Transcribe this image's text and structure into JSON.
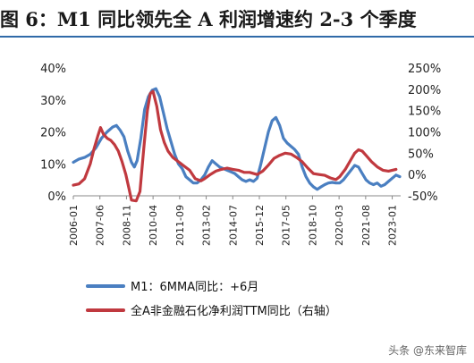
{
  "header": {
    "title": "图 6：M1 同比领先全 A 利润增速约 2-3 个季度"
  },
  "watermark": "头条 @东来智库",
  "chart_data": {
    "type": "line",
    "title": "",
    "xlabel": "",
    "ylabel": "",
    "x_tick_labels": [
      "2006-01",
      "2007-06",
      "2008-11",
      "2010-04",
      "2011-09",
      "2013-02",
      "2014-07",
      "2015-12",
      "2017-05",
      "2018-10",
      "2020-03",
      "2021-08",
      "2023-01"
    ],
    "x_range": [
      2006.0,
      2023.45
    ],
    "y_left": {
      "ticks": [
        "0%",
        "10%",
        "20%",
        "30%",
        "40%"
      ],
      "range": [
        0,
        40
      ]
    },
    "y_right": {
      "ticks": [
        "-50%",
        "0%",
        "50%",
        "100%",
        "150%",
        "200%",
        "250%"
      ],
      "range": [
        -50,
        250
      ]
    },
    "grid": false,
    "legend_position": "bottom",
    "series": [
      {
        "name": "M1：6MMA同比：+6月",
        "axis": "left",
        "color": "#4a7fc1",
        "points": [
          [
            2006.0,
            10.5
          ],
          [
            2006.3,
            11.5
          ],
          [
            2006.6,
            12
          ],
          [
            2006.9,
            13
          ],
          [
            2007.2,
            15
          ],
          [
            2007.5,
            18
          ],
          [
            2007.8,
            20
          ],
          [
            2008.1,
            21.5
          ],
          [
            2008.3,
            22
          ],
          [
            2008.5,
            20.5
          ],
          [
            2008.7,
            18.5
          ],
          [
            2008.9,
            14
          ],
          [
            2009.1,
            10.5
          ],
          [
            2009.25,
            9
          ],
          [
            2009.4,
            11
          ],
          [
            2009.6,
            18
          ],
          [
            2009.8,
            27
          ],
          [
            2010.0,
            31
          ],
          [
            2010.2,
            33
          ],
          [
            2010.4,
            33.5
          ],
          [
            2010.6,
            31
          ],
          [
            2010.8,
            26
          ],
          [
            2011.0,
            21
          ],
          [
            2011.2,
            17
          ],
          [
            2011.4,
            13
          ],
          [
            2011.6,
            10
          ],
          [
            2011.8,
            8.5
          ],
          [
            2012.0,
            6
          ],
          [
            2012.2,
            5
          ],
          [
            2012.4,
            4
          ],
          [
            2012.6,
            4
          ],
          [
            2012.8,
            5
          ],
          [
            2013.0,
            6.5
          ],
          [
            2013.2,
            9
          ],
          [
            2013.4,
            11
          ],
          [
            2013.6,
            10
          ],
          [
            2013.8,
            9
          ],
          [
            2014.0,
            8.5
          ],
          [
            2014.2,
            8
          ],
          [
            2014.4,
            7.5
          ],
          [
            2014.6,
            7
          ],
          [
            2014.8,
            6
          ],
          [
            2015.0,
            5
          ],
          [
            2015.2,
            4.5
          ],
          [
            2015.4,
            5
          ],
          [
            2015.6,
            4.5
          ],
          [
            2015.8,
            5.5
          ],
          [
            2016.0,
            10
          ],
          [
            2016.2,
            15
          ],
          [
            2016.4,
            20
          ],
          [
            2016.6,
            23.5
          ],
          [
            2016.8,
            24.5
          ],
          [
            2017.0,
            22
          ],
          [
            2017.2,
            18
          ],
          [
            2017.4,
            16.5
          ],
          [
            2017.6,
            15.5
          ],
          [
            2017.8,
            14.5
          ],
          [
            2018.0,
            13
          ],
          [
            2018.2,
            9
          ],
          [
            2018.4,
            6
          ],
          [
            2018.6,
            4
          ],
          [
            2018.8,
            2.8
          ],
          [
            2019.0,
            2
          ],
          [
            2019.2,
            2.8
          ],
          [
            2019.4,
            3.5
          ],
          [
            2019.6,
            4
          ],
          [
            2019.8,
            4.2
          ],
          [
            2020.0,
            4
          ],
          [
            2020.2,
            4
          ],
          [
            2020.4,
            5
          ],
          [
            2020.6,
            6.5
          ],
          [
            2020.8,
            8
          ],
          [
            2021.0,
            9.5
          ],
          [
            2021.2,
            9
          ],
          [
            2021.4,
            7
          ],
          [
            2021.6,
            5
          ],
          [
            2021.8,
            4
          ],
          [
            2022.0,
            3.5
          ],
          [
            2022.2,
            4
          ],
          [
            2022.4,
            3
          ],
          [
            2022.6,
            3.5
          ],
          [
            2022.8,
            4.5
          ],
          [
            2023.0,
            5.5
          ],
          [
            2023.2,
            6.5
          ],
          [
            2023.4,
            6
          ]
        ]
      },
      {
        "name": "全A非金融石化净利润TTM同比（右轴）",
        "axis": "right",
        "color": "#c0393f",
        "points": [
          [
            2006.0,
            -25
          ],
          [
            2006.3,
            -22
          ],
          [
            2006.6,
            -10
          ],
          [
            2006.9,
            25
          ],
          [
            2007.1,
            60
          ],
          [
            2007.3,
            90
          ],
          [
            2007.45,
            110
          ],
          [
            2007.6,
            95
          ],
          [
            2007.8,
            85
          ],
          [
            2008.0,
            80
          ],
          [
            2008.2,
            70
          ],
          [
            2008.4,
            55
          ],
          [
            2008.6,
            30
          ],
          [
            2008.8,
            0
          ],
          [
            2008.95,
            -30
          ],
          [
            2009.1,
            -60
          ],
          [
            2009.35,
            -62
          ],
          [
            2009.55,
            -40
          ],
          [
            2009.75,
            60
          ],
          [
            2009.95,
            150
          ],
          [
            2010.1,
            190
          ],
          [
            2010.25,
            195
          ],
          [
            2010.45,
            160
          ],
          [
            2010.65,
            105
          ],
          [
            2010.85,
            75
          ],
          [
            2011.05,
            55
          ],
          [
            2011.3,
            40
          ],
          [
            2011.6,
            30
          ],
          [
            2011.9,
            20
          ],
          [
            2012.2,
            10
          ],
          [
            2012.5,
            -10
          ],
          [
            2012.8,
            -15
          ],
          [
            2013.0,
            -10
          ],
          [
            2013.3,
            0
          ],
          [
            2013.6,
            8
          ],
          [
            2013.9,
            12
          ],
          [
            2014.2,
            15
          ],
          [
            2014.5,
            12
          ],
          [
            2014.8,
            10
          ],
          [
            2015.1,
            5
          ],
          [
            2015.4,
            5
          ],
          [
            2015.8,
            0
          ],
          [
            2016.1,
            8
          ],
          [
            2016.4,
            22
          ],
          [
            2016.7,
            38
          ],
          [
            2017.0,
            45
          ],
          [
            2017.3,
            50
          ],
          [
            2017.6,
            48
          ],
          [
            2017.9,
            40
          ],
          [
            2018.2,
            30
          ],
          [
            2018.5,
            15
          ],
          [
            2018.8,
            2
          ],
          [
            2019.1,
            0
          ],
          [
            2019.4,
            -2
          ],
          [
            2019.7,
            -8
          ],
          [
            2020.0,
            -12
          ],
          [
            2020.2,
            -5
          ],
          [
            2020.5,
            12
          ],
          [
            2020.8,
            35
          ],
          [
            2021.0,
            50
          ],
          [
            2021.2,
            58
          ],
          [
            2021.4,
            55
          ],
          [
            2021.6,
            45
          ],
          [
            2021.9,
            30
          ],
          [
            2022.2,
            18
          ],
          [
            2022.5,
            10
          ],
          [
            2022.8,
            8
          ],
          [
            2023.0,
            10
          ],
          [
            2023.2,
            12
          ]
        ]
      }
    ]
  }
}
